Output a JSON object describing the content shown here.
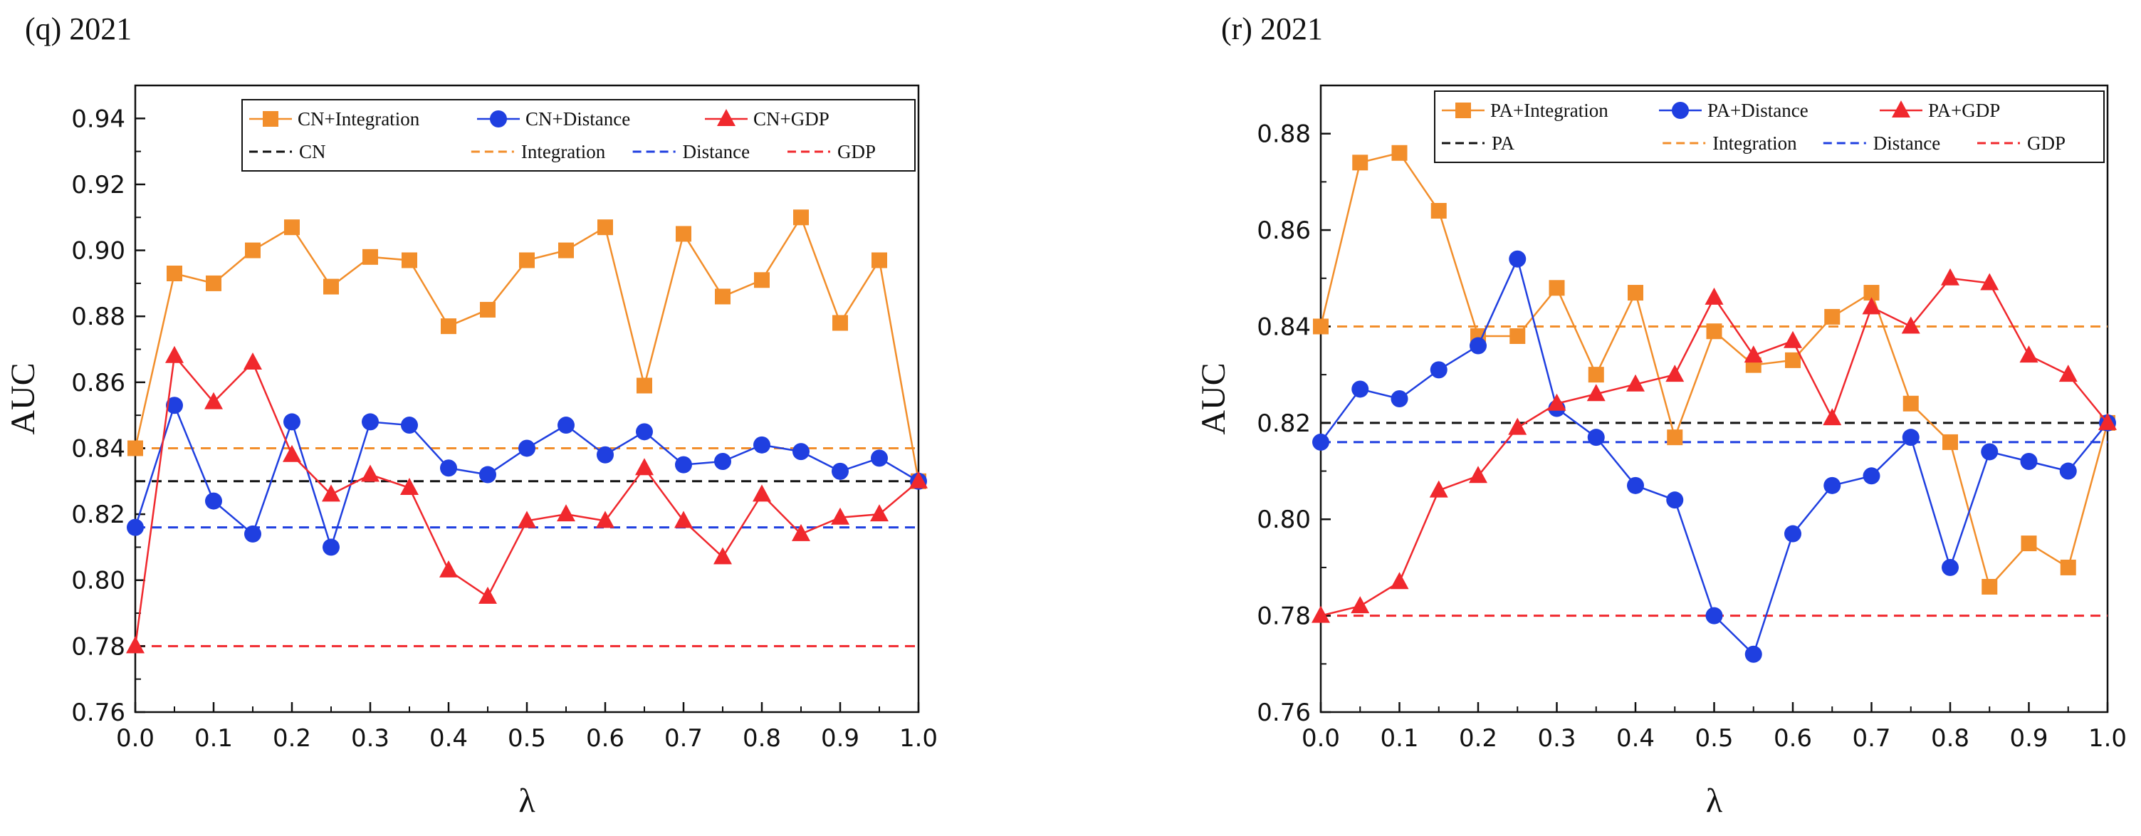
{
  "chart_data": [
    {
      "type": "line",
      "title": "(q) 2021",
      "xlabel": "λ",
      "ylabel": "AUC",
      "xlim": [
        0,
        1
      ],
      "ylim": [
        0.76,
        0.95
      ],
      "x_ticks": [
        "0.0",
        "0.1",
        "0.2",
        "0.3",
        "0.4",
        "0.5",
        "0.6",
        "0.7",
        "0.8",
        "0.9",
        "1.0"
      ],
      "y_ticks": [
        "0.76",
        "0.78",
        "0.80",
        "0.82",
        "0.84",
        "0.86",
        "0.88",
        "0.90",
        "0.92",
        "0.94"
      ],
      "y_tick_values": [
        0.76,
        0.78,
        0.8,
        0.82,
        0.84,
        0.86,
        0.88,
        0.9,
        0.92,
        0.94
      ],
      "legend_position": "top-right",
      "x": [
        0,
        0.05,
        0.1,
        0.15,
        0.2,
        0.25,
        0.3,
        0.35,
        0.4,
        0.45,
        0.5,
        0.55,
        0.6,
        0.65,
        0.7,
        0.75,
        0.8,
        0.85,
        0.9,
        0.95,
        1.0
      ],
      "series": [
        {
          "name": "CN+Integration",
          "color": "#F28E2B",
          "marker": "square",
          "values": [
            0.84,
            0.893,
            0.89,
            0.9,
            0.907,
            0.889,
            0.898,
            0.897,
            0.877,
            0.882,
            0.897,
            0.9,
            0.907,
            0.859,
            0.905,
            0.886,
            0.891,
            0.91,
            0.878,
            0.897,
            0.83
          ]
        },
        {
          "name": "CN+Distance",
          "color": "#1F3FE0",
          "marker": "circle",
          "values": [
            0.816,
            0.853,
            0.824,
            0.814,
            0.848,
            0.81,
            0.848,
            0.847,
            0.834,
            0.832,
            0.84,
            0.847,
            0.838,
            0.845,
            0.835,
            0.836,
            0.841,
            0.839,
            0.833,
            0.837,
            0.83
          ]
        },
        {
          "name": "CN+GDP",
          "color": "#F0282D",
          "marker": "triangle",
          "values": [
            0.78,
            0.868,
            0.854,
            0.866,
            0.838,
            0.826,
            0.832,
            0.828,
            0.803,
            0.795,
            0.818,
            0.82,
            0.818,
            0.834,
            0.818,
            0.807,
            0.826,
            0.814,
            0.819,
            0.82,
            0.83
          ]
        }
      ],
      "baselines": [
        {
          "name": "CN",
          "color": "#111111",
          "value": 0.83
        },
        {
          "name": "Integration",
          "color": "#F28E2B",
          "value": 0.84
        },
        {
          "name": "Distance",
          "color": "#1F3FE0",
          "value": 0.816
        },
        {
          "name": "GDP",
          "color": "#F0282D",
          "value": 0.78
        }
      ]
    },
    {
      "type": "line",
      "title": "(r) 2021",
      "xlabel": "λ",
      "ylabel": "AUC",
      "xlim": [
        0,
        1
      ],
      "ylim": [
        0.76,
        0.89
      ],
      "x_ticks": [
        "0.0",
        "0.1",
        "0.2",
        "0.3",
        "0.4",
        "0.5",
        "0.6",
        "0.7",
        "0.8",
        "0.9",
        "1.0"
      ],
      "y_ticks": [
        "0.76",
        "0.78",
        "0.80",
        "0.82",
        "0.84",
        "0.86",
        "0.88"
      ],
      "y_tick_values": [
        0.76,
        0.78,
        0.8,
        0.82,
        0.84,
        0.86,
        0.88
      ],
      "legend_position": "top-right",
      "x": [
        0,
        0.05,
        0.1,
        0.15,
        0.2,
        0.25,
        0.3,
        0.35,
        0.4,
        0.45,
        0.5,
        0.55,
        0.6,
        0.65,
        0.7,
        0.75,
        0.8,
        0.85,
        0.9,
        0.95,
        1.0
      ],
      "series": [
        {
          "name": "PA+Integration",
          "color": "#F28E2B",
          "marker": "square",
          "values": [
            0.84,
            0.874,
            0.876,
            0.864,
            0.838,
            0.838,
            0.848,
            0.83,
            0.847,
            0.817,
            0.839,
            0.832,
            0.833,
            0.842,
            0.847,
            0.824,
            0.816,
            0.786,
            0.795,
            0.79,
            0.82
          ]
        },
        {
          "name": "PA+Distance",
          "color": "#1F3FE0",
          "marker": "circle",
          "values": [
            0.816,
            0.827,
            0.825,
            0.831,
            0.836,
            0.854,
            0.823,
            0.817,
            0.807,
            0.804,
            0.78,
            0.772,
            0.797,
            0.807,
            0.809,
            0.817,
            0.79,
            0.814,
            0.812,
            0.81,
            0.82
          ]
        },
        {
          "name": "PA+GDP",
          "color": "#F0282D",
          "marker": "triangle",
          "values": [
            0.78,
            0.782,
            0.787,
            0.806,
            0.809,
            0.819,
            0.824,
            0.826,
            0.828,
            0.83,
            0.846,
            0.834,
            0.837,
            0.821,
            0.844,
            0.84,
            0.85,
            0.849,
            0.834,
            0.83,
            0.82
          ]
        }
      ],
      "baselines": [
        {
          "name": "PA",
          "color": "#111111",
          "value": 0.82
        },
        {
          "name": "Integration",
          "color": "#F28E2B",
          "value": 0.84
        },
        {
          "name": "Distance",
          "color": "#1F3FE0",
          "value": 0.816
        },
        {
          "name": "GDP",
          "color": "#F0282D",
          "value": 0.78
        }
      ]
    }
  ]
}
